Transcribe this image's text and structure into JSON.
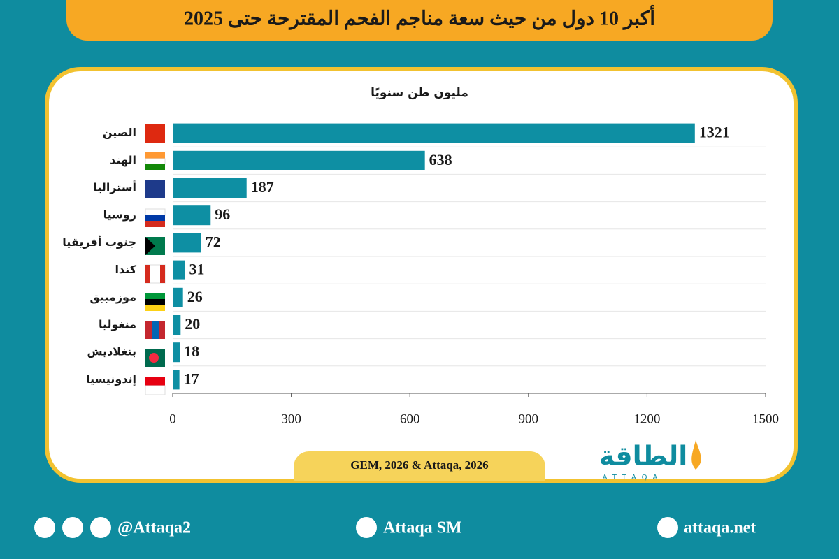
{
  "header": {
    "title": "أكبر 10 دول من حيث سعة مناجم الفحم المقترحة حتى 2025"
  },
  "chart_data": {
    "type": "bar",
    "orientation": "horizontal",
    "subtitle": "مليون طن سنويًا",
    "categories": [
      "الصين",
      "الهند",
      "أستراليا",
      "روسيا",
      "جنوب أفريقيا",
      "كندا",
      "موزمبيق",
      "منغوليا",
      "بنغلاديش",
      "إندونيسيا"
    ],
    "values": [
      1321,
      638,
      187,
      96,
      72,
      31,
      26,
      20,
      18,
      17
    ],
    "color": "#0e8fa3",
    "xlim": [
      0,
      1500
    ],
    "xticks": [
      0,
      300,
      600,
      900,
      1200,
      1500
    ]
  },
  "source": "GEM, 2026 & Attaqa, 2026",
  "logo": {
    "arabic": "الطاقة",
    "latin": "ATTAQA"
  },
  "footer": {
    "social": "@Attaqa2",
    "youtube": "Attaqa SM",
    "website": "attaqa.net"
  }
}
